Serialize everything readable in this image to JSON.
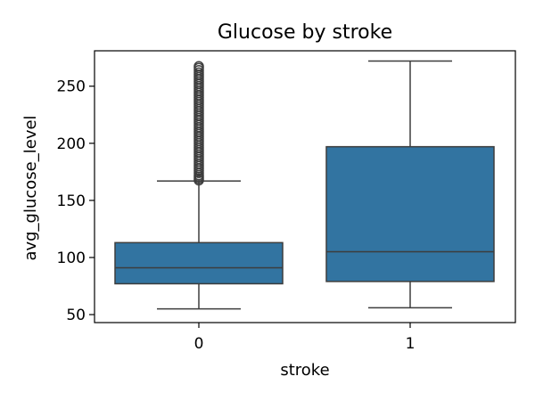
{
  "chart_data": {
    "type": "boxplot",
    "title": "Glucose by stroke",
    "xlabel": "stroke",
    "ylabel": "avg_glucose_level",
    "categories": [
      "0",
      "1"
    ],
    "yticks": [
      50,
      100,
      150,
      200,
      250
    ],
    "ylim": [
      43,
      281
    ],
    "grid": false,
    "legend": "none",
    "box_color": "#3274a1",
    "line_color": "#3d3d3d",
    "boxes": [
      {
        "category": "0",
        "whisker_low": 55,
        "q1": 77,
        "median": 91,
        "q3": 113,
        "whisker_high": 167,
        "outliers": [
          167.5,
          169,
          170.5,
          172,
          174,
          176,
          178,
          180,
          182,
          184,
          186,
          188,
          190,
          192,
          194,
          196,
          198,
          200,
          202,
          204,
          206,
          208,
          210,
          212,
          214,
          216,
          218,
          220,
          222,
          224,
          226,
          228,
          230,
          232,
          234,
          236,
          238,
          240,
          242,
          244,
          246,
          248,
          250,
          252,
          254,
          256,
          258,
          260,
          262,
          264,
          266,
          267.5
        ]
      },
      {
        "category": "1",
        "whisker_low": 56,
        "q1": 79,
        "median": 105,
        "q3": 197,
        "whisker_high": 272,
        "outliers": []
      }
    ]
  }
}
